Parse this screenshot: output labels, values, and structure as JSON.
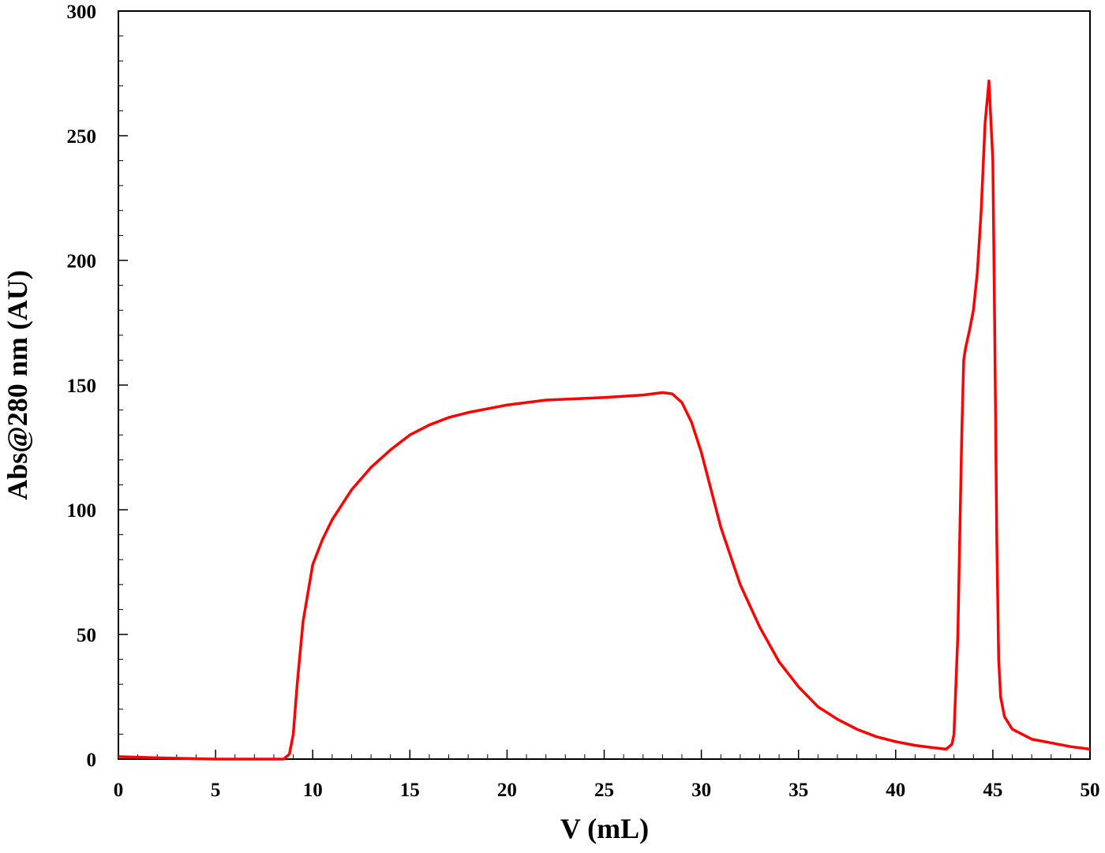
{
  "chart_data": {
    "type": "line",
    "x_label": "V (mL)",
    "y_label": "Abs@280 nm (AU)",
    "xlim": [
      0,
      50
    ],
    "xticks": [
      0,
      5,
      10,
      15,
      20,
      25,
      30,
      35,
      40,
      45,
      50
    ],
    "ylim": [
      0,
      300
    ],
    "yticks": [
      0,
      50,
      100,
      150,
      200,
      250,
      300
    ],
    "grid": false,
    "series": [
      {
        "name": null,
        "color": "#ff0000",
        "x": [
          0,
          2,
          5,
          8,
          8.5,
          8.8,
          9,
          9.2,
          9.5,
          10,
          10.5,
          11,
          12,
          13,
          14,
          15,
          16,
          17,
          18,
          20,
          22,
          25,
          27,
          28,
          28.5,
          29,
          29.5,
          30,
          30.5,
          31,
          32,
          33,
          34,
          35,
          36,
          37,
          38,
          39,
          40,
          41,
          42,
          42.6,
          42.9,
          43.0,
          43.2,
          43.4,
          43.5,
          43.6,
          43.8,
          44.0,
          44.2,
          44.4,
          44.6,
          44.8,
          45.0,
          45.1,
          45.2,
          45.3,
          45.4,
          45.6,
          46,
          47,
          48,
          49,
          50
        ],
        "values": [
          1,
          0.5,
          0,
          0,
          0,
          2,
          10,
          30,
          55,
          78,
          88,
          96,
          108,
          117,
          124,
          130,
          134,
          137,
          139,
          142,
          144,
          145,
          146,
          147,
          146.5,
          143,
          135,
          123,
          108,
          93,
          70,
          53,
          39,
          29,
          21,
          16,
          12,
          9,
          7,
          5.5,
          4.5,
          4,
          6,
          10,
          50,
          130,
          160,
          165,
          172,
          180,
          195,
          220,
          255,
          272,
          240,
          170,
          90,
          40,
          25,
          17,
          12,
          8,
          6.5,
          5,
          4
        ]
      }
    ]
  }
}
